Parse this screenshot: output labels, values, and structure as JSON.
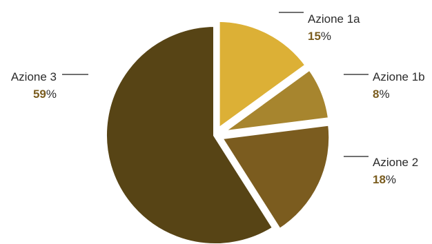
{
  "chart_data": {
    "type": "pie",
    "slices": [
      {
        "label": "Azione 1a",
        "value": 15,
        "display": "15",
        "color": "#dcb036",
        "exploded": true
      },
      {
        "label": "Azione 1b",
        "value": 8,
        "display": "8",
        "color": "#a7852e",
        "exploded": true
      },
      {
        "label": "Azione 2",
        "value": 18,
        "display": "18",
        "color": "#7b5c1f",
        "exploded": true
      },
      {
        "label": "Azione 3",
        "value": 59,
        "display": "59",
        "color": "#574415",
        "exploded": false
      }
    ],
    "unit": "%",
    "start_angle": "12 o'clock, clockwise",
    "value_label_color": "#7a5c1e",
    "separator_color": "#ffffff"
  }
}
